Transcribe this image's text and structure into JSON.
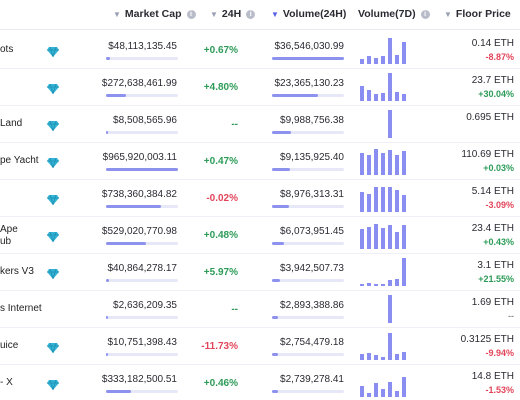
{
  "header": {
    "market_cap": "Market Cap",
    "change_24h": "24H",
    "volume_24h": "Volume(24H)",
    "volume_7d": "Volume(7D)",
    "floor_price": "Floor Price"
  },
  "rows": [
    {
      "name": "ots",
      "verified": true,
      "market_cap": "$48,113,135.45",
      "mcap_share": 0.05,
      "change_24h": "+0.67%",
      "change_dir": "pos",
      "volume_24h": "$36,546,030.99",
      "vol_share": 1.0,
      "vol7d": [
        0.18,
        0.28,
        0.22,
        0.3,
        0.92,
        0.33,
        0.78
      ],
      "floor_price": "0.14 ETH",
      "floor_change": "-8.87%",
      "floor_dir": "neg"
    },
    {
      "name": "",
      "verified": true,
      "market_cap": "$272,638,461.99",
      "mcap_share": 0.28,
      "change_24h": "+4.80%",
      "change_dir": "pos",
      "volume_24h": "$23,365,130.23",
      "vol_share": 0.64,
      "vol7d": [
        0.55,
        0.4,
        0.25,
        0.28,
        1.0,
        0.32,
        0.25
      ],
      "floor_price": "23.7 ETH",
      "floor_change": "+30.04%",
      "floor_dir": "pos"
    },
    {
      "name": "Land",
      "verified": true,
      "market_cap": "$8,508,565.96",
      "mcap_share": 0.01,
      "change_24h": "--",
      "change_dir": "neu",
      "volume_24h": "$9,988,756.38",
      "vol_share": 0.27,
      "vol7d": [
        0,
        0,
        0,
        0,
        1.0,
        0,
        0
      ],
      "floor_price": "0.695 ETH",
      "floor_change": "",
      "floor_dir": "neu"
    },
    {
      "name": "pe Yacht",
      "verified": true,
      "market_cap": "$965,920,003.11",
      "mcap_share": 1.0,
      "change_24h": "+0.47%",
      "change_dir": "pos",
      "volume_24h": "$9,135,925.40",
      "vol_share": 0.25,
      "vol7d": [
        0.8,
        0.7,
        0.92,
        0.8,
        0.88,
        0.72,
        0.85
      ],
      "floor_price": "110.69 ETH",
      "floor_change": "+0.03%",
      "floor_dir": "pos"
    },
    {
      "name": "",
      "verified": true,
      "market_cap": "$738,360,384.82",
      "mcap_share": 0.76,
      "change_24h": "-0.02%",
      "change_dir": "neg",
      "volume_24h": "$8,976,313.31",
      "vol_share": 0.24,
      "vol7d": [
        0.72,
        0.66,
        0.9,
        0.88,
        0.9,
        0.78,
        0.62
      ],
      "floor_price": "5.14 ETH",
      "floor_change": "-3.09%",
      "floor_dir": "neg"
    },
    {
      "name": "Ape\nub",
      "verified": true,
      "market_cap": "$529,020,770.98",
      "mcap_share": 0.55,
      "change_24h": "+0.48%",
      "change_dir": "pos",
      "volume_24h": "$6,073,951.45",
      "vol_share": 0.17,
      "vol7d": [
        0.72,
        0.78,
        0.88,
        0.74,
        0.84,
        0.62,
        0.86
      ],
      "floor_price": "23.4 ETH",
      "floor_change": "+0.43%",
      "floor_dir": "pos"
    },
    {
      "name": "kers V3",
      "verified": true,
      "market_cap": "$40,864,278.17",
      "mcap_share": 0.04,
      "change_24h": "+5.97%",
      "change_dir": "pos",
      "volume_24h": "$3,942,507.73",
      "vol_share": 0.11,
      "vol7d": [
        0.06,
        0.1,
        0.06,
        0.08,
        0.2,
        0.25,
        1.0
      ],
      "floor_price": "3.1 ETH",
      "floor_change": "+21.55%",
      "floor_dir": "pos"
    },
    {
      "name": "s Internet",
      "verified": false,
      "market_cap": "$2,636,209.35",
      "mcap_share": 0.01,
      "change_24h": "--",
      "change_dir": "neu",
      "volume_24h": "$2,893,388.86",
      "vol_share": 0.08,
      "vol7d": [
        0,
        0,
        0,
        0,
        1.0,
        0,
        0
      ],
      "floor_price": "1.69 ETH",
      "floor_change": "--",
      "floor_dir": "dash"
    },
    {
      "name": "uice",
      "verified": true,
      "market_cap": "$10,751,398.43",
      "mcap_share": 0.02,
      "change_24h": "-11.73%",
      "change_dir": "neg",
      "volume_24h": "$2,754,479.18",
      "vol_share": 0.08,
      "vol7d": [
        0.2,
        0.25,
        0.18,
        0.12,
        0.95,
        0.22,
        0.3
      ],
      "floor_price": "0.3125 ETH",
      "floor_change": "-9.94%",
      "floor_dir": "neg"
    },
    {
      "name": "- X",
      "verified": true,
      "market_cap": "$333,182,500.51",
      "mcap_share": 0.35,
      "change_24h": "+0.46%",
      "change_dir": "pos",
      "volume_24h": "$2,739,278.41",
      "vol_share": 0.08,
      "vol7d": [
        0.4,
        0.15,
        0.5,
        0.3,
        0.55,
        0.22,
        0.7
      ],
      "floor_price": "14.8 ETH",
      "floor_change": "-1.53%",
      "floor_dir": "neg"
    }
  ]
}
